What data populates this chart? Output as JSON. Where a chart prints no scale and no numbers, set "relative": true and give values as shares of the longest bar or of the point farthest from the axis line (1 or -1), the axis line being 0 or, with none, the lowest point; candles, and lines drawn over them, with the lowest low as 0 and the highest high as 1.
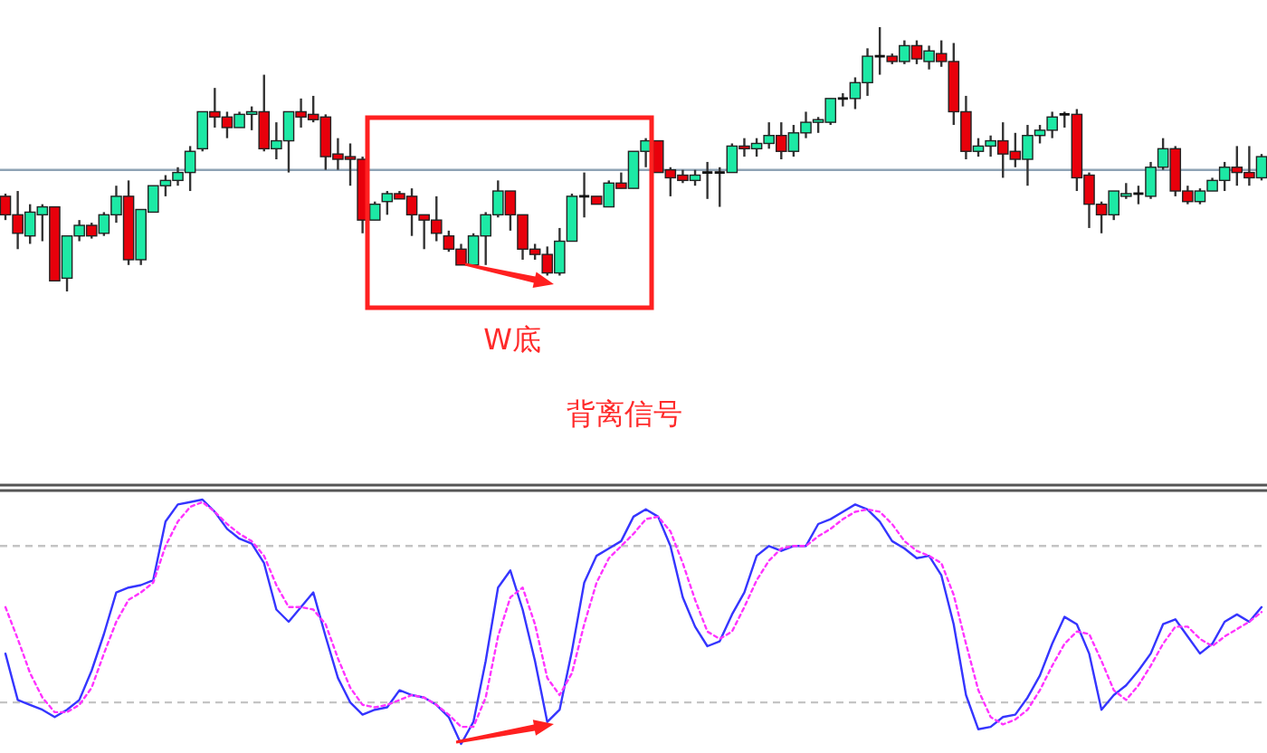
{
  "chart_data": [
    {
      "type": "candlestick",
      "relative": true,
      "categories": [
        null,
        null,
        null,
        null,
        null,
        null,
        null,
        null,
        null,
        null,
        null,
        null,
        null,
        null,
        null,
        null,
        null,
        null,
        null,
        null,
        null,
        null,
        null,
        null,
        null,
        null,
        null,
        null,
        null,
        null,
        null,
        null,
        null,
        null,
        null,
        null,
        null,
        null,
        null,
        null,
        null,
        null,
        null,
        null,
        null,
        null,
        null,
        null,
        null,
        null,
        null,
        null,
        null,
        null,
        null,
        null,
        null,
        null,
        null,
        null,
        null,
        null,
        null,
        null,
        null,
        null,
        null,
        null,
        null,
        null,
        null,
        null,
        null,
        null,
        null,
        null,
        null,
        null,
        null,
        null,
        null,
        null,
        null,
        null,
        null,
        null,
        null,
        null,
        null,
        null,
        null,
        null,
        null,
        null,
        null,
        null,
        null,
        null,
        null,
        null,
        null,
        null,
        null
      ],
      "ohlc": [
        [
          0.36,
          0.37,
          0.27,
          0.29
        ],
        [
          0.29,
          0.38,
          0.16,
          0.22
        ],
        [
          0.21,
          0.33,
          0.18,
          0.3
        ],
        [
          0.29,
          0.33,
          0.19,
          0.32
        ],
        [
          0.32,
          0.32,
          0.04,
          0.04
        ],
        [
          0.05,
          0.21,
          0,
          0.21
        ],
        [
          0.21,
          0.27,
          0.19,
          0.25
        ],
        [
          0.25,
          0.26,
          0.2,
          0.21
        ],
        [
          0.22,
          0.3,
          0.21,
          0.29
        ],
        [
          0.29,
          0.4,
          0.26,
          0.36
        ],
        [
          0.36,
          0.42,
          0.1,
          0.12
        ],
        [
          0.12,
          0.31,
          0.1,
          0.31
        ],
        [
          0.3,
          0.4,
          0.3,
          0.4
        ],
        [
          0.4,
          0.44,
          0.36,
          0.42
        ],
        [
          0.42,
          0.47,
          0.4,
          0.45
        ],
        [
          0.45,
          0.55,
          0.38,
          0.53
        ],
        [
          0.54,
          0.68,
          0.53,
          0.68
        ],
        [
          0.68,
          0.77,
          0.62,
          0.66
        ],
        [
          0.66,
          0.68,
          0.58,
          0.62
        ],
        [
          0.62,
          0.68,
          0.62,
          0.67
        ],
        [
          0.67,
          0.7,
          0.61,
          0.68
        ],
        [
          0.68,
          0.82,
          0.53,
          0.54
        ],
        [
          0.54,
          0.64,
          0.5,
          0.57
        ],
        [
          0.57,
          0.68,
          0.45,
          0.68
        ],
        [
          0.68,
          0.73,
          0.62,
          0.66
        ],
        [
          0.67,
          0.74,
          0.64,
          0.65
        ],
        [
          0.66,
          0.67,
          0.46,
          0.51
        ],
        [
          0.52,
          0.58,
          0.46,
          0.5
        ],
        [
          0.51,
          0.56,
          0.4,
          0.5
        ],
        [
          0.5,
          0.51,
          0.22,
          0.27
        ],
        [
          0.27,
          0.34,
          0.27,
          0.33
        ],
        [
          0.34,
          0.38,
          0.29,
          0.37
        ],
        [
          0.37,
          0.38,
          0.35,
          0.35
        ],
        [
          0.36,
          0.39,
          0.21,
          0.29
        ],
        [
          0.29,
          0.29,
          0.16,
          0.27
        ],
        [
          0.27,
          0.36,
          0.19,
          0.22
        ],
        [
          0.21,
          0.23,
          0.15,
          0.16
        ],
        [
          0.16,
          0.18,
          0.1,
          0.1
        ],
        [
          0.1,
          0.22,
          0.1,
          0.21
        ],
        [
          0.21,
          0.3,
          0.1,
          0.29
        ],
        [
          0.29,
          0.42,
          0.28,
          0.38
        ],
        [
          0.38,
          0.38,
          0.23,
          0.29
        ],
        [
          0.29,
          0.29,
          0.12,
          0.16
        ],
        [
          0.16,
          0.18,
          0.12,
          0.14
        ],
        [
          0.14,
          0.17,
          0.06,
          0.07
        ],
        [
          0.07,
          0.24,
          0.06,
          0.19
        ],
        [
          0.19,
          0.37,
          0.19,
          0.36
        ],
        [
          0.36,
          0.45,
          0.28,
          0.36
        ],
        [
          0.36,
          0.36,
          0.33,
          0.33
        ],
        [
          0.32,
          0.42,
          0.32,
          0.41
        ],
        [
          0.41,
          0.45,
          0.39,
          0.39
        ],
        [
          0.39,
          0.53,
          0.39,
          0.53
        ],
        [
          0.53,
          0.58,
          0.47,
          0.57
        ],
        [
          0.57,
          0.57,
          0.45,
          0.45
        ],
        [
          0.46,
          0.47,
          0.36,
          0.43
        ],
        [
          0.44,
          0.46,
          0.41,
          0.42
        ],
        [
          0.42,
          0.46,
          0.4,
          0.44
        ],
        [
          0.45,
          0.49,
          0.35,
          0.45
        ],
        [
          0.45,
          0.47,
          0.32,
          0.45
        ],
        [
          0.45,
          0.56,
          0.45,
          0.55
        ],
        [
          0.55,
          0.58,
          0.51,
          0.54
        ],
        [
          0.54,
          0.58,
          0.51,
          0.56
        ],
        [
          0.56,
          0.64,
          0.54,
          0.59
        ],
        [
          0.59,
          0.64,
          0.5,
          0.53
        ],
        [
          0.53,
          0.63,
          0.51,
          0.6
        ],
        [
          0.6,
          0.68,
          0.58,
          0.64
        ],
        [
          0.64,
          0.66,
          0.6,
          0.65
        ],
        [
          0.64,
          0.73,
          0.63,
          0.73
        ],
        [
          0.73,
          0.75,
          0.7,
          0.73
        ],
        [
          0.73,
          0.81,
          0.69,
          0.79
        ],
        [
          0.79,
          0.92,
          0.74,
          0.89
        ],
        [
          0.89,
          1.0,
          0.82,
          0.89
        ],
        [
          0.89,
          0.9,
          0.86,
          0.87
        ],
        [
          0.87,
          0.95,
          0.86,
          0.93
        ],
        [
          0.93,
          0.95,
          0.86,
          0.88
        ],
        [
          0.87,
          0.93,
          0.84,
          0.91
        ],
        [
          0.9,
          0.95,
          0.85,
          0.87
        ],
        [
          0.87,
          0.94,
          0.63,
          0.68
        ],
        [
          0.68,
          0.74,
          0.5,
          0.53
        ],
        [
          0.53,
          0.58,
          0.51,
          0.55
        ],
        [
          0.55,
          0.59,
          0.51,
          0.57
        ],
        [
          0.57,
          0.64,
          0.43,
          0.52
        ],
        [
          0.53,
          0.6,
          0.47,
          0.5
        ],
        [
          0.5,
          0.63,
          0.4,
          0.59
        ],
        [
          0.59,
          0.63,
          0.56,
          0.61
        ],
        [
          0.61,
          0.68,
          0.58,
          0.66
        ],
        [
          0.67,
          0.68,
          0.62,
          0.67
        ],
        [
          0.67,
          0.69,
          0.38,
          0.43
        ],
        [
          0.44,
          0.45,
          0.24,
          0.33
        ],
        [
          0.33,
          0.34,
          0.22,
          0.29
        ],
        [
          0.29,
          0.38,
          0.27,
          0.38
        ],
        [
          0.36,
          0.41,
          0.35,
          0.37
        ],
        [
          0.37,
          0.4,
          0.33,
          0.37
        ],
        [
          0.36,
          0.49,
          0.35,
          0.47
        ],
        [
          0.47,
          0.58,
          0.46,
          0.54
        ],
        [
          0.54,
          0.55,
          0.36,
          0.38
        ],
        [
          0.38,
          0.4,
          0.33,
          0.34
        ],
        [
          0.34,
          0.39,
          0.33,
          0.38
        ],
        [
          0.38,
          0.43,
          0.38,
          0.42
        ],
        [
          0.42,
          0.49,
          0.38,
          0.47
        ],
        [
          0.47,
          0.55,
          0.4,
          0.45
        ],
        [
          0.45,
          0.55,
          0.4,
          0.43
        ],
        [
          0.43,
          0.52,
          0.42,
          0.51
        ]
      ],
      "colors": [
        "#e8000b",
        "#e8000b",
        "#1de9a5",
        "#1de9a5",
        "#e8000b",
        "#1de9a5",
        "#1de9a5",
        "#e8000b",
        "#1de9a5",
        "#1de9a5",
        "#e8000b",
        "#1de9a5",
        "#1de9a5",
        "#1de9a5",
        "#1de9a5",
        "#1de9a5",
        "#1de9a5",
        "#e8000b",
        "#e8000b",
        "#1de9a5",
        "#1de9a5",
        "#e8000b",
        "#1de9a5",
        "#1de9a5",
        "#e8000b",
        "#e8000b",
        "#e8000b",
        "#e8000b",
        "#e8000b",
        "#e8000b",
        "#1de9a5",
        "#1de9a5",
        "#e8000b",
        "#e8000b",
        "#e8000b",
        "#e8000b",
        "#e8000b",
        "#e8000b",
        "#1de9a5",
        "#1de9a5",
        "#1de9a5",
        "#e8000b",
        "#e8000b",
        "#e8000b",
        "#e8000b",
        "#1de9a5",
        "#1de9a5",
        "#111111",
        "#e8000b",
        "#1de9a5",
        "#e8000b",
        "#1de9a5",
        "#1de9a5",
        "#e8000b",
        "#e8000b",
        "#e8000b",
        "#1de9a5",
        "#111111",
        "#111111",
        "#1de9a5",
        "#e8000b",
        "#1de9a5",
        "#1de9a5",
        "#e8000b",
        "#1de9a5",
        "#1de9a5",
        "#1de9a5",
        "#1de9a5",
        "#111111",
        "#1de9a5",
        "#1de9a5",
        "#111111",
        "#e8000b",
        "#1de9a5",
        "#e8000b",
        "#1de9a5",
        "#e8000b",
        "#e8000b",
        "#e8000b",
        "#1de9a5",
        "#1de9a5",
        "#e8000b",
        "#e8000b",
        "#1de9a5",
        "#1de9a5",
        "#1de9a5",
        "#111111",
        "#e8000b",
        "#e8000b",
        "#e8000b",
        "#1de9a5",
        "#1de9a5",
        "#111111",
        "#1de9a5",
        "#1de9a5",
        "#e8000b",
        "#e8000b",
        "#1de9a5",
        "#1de9a5",
        "#1de9a5",
        "#e8000b",
        "#e8000b",
        "#1de9a5"
      ],
      "ref_lines": [
        {
          "axis": "y",
          "value": 0.46,
          "color": "#8fa3b5"
        }
      ],
      "annotations": [
        "W底",
        "背离信号"
      ]
    },
    {
      "type": "line",
      "relative": true,
      "categories": [
        null,
        null,
        null,
        null,
        null,
        null,
        null,
        null,
        null,
        null,
        null,
        null,
        null,
        null,
        null,
        null,
        null,
        null,
        null,
        null,
        null,
        null,
        null,
        null,
        null,
        null,
        null,
        null,
        null,
        null,
        null,
        null,
        null,
        null,
        null,
        null,
        null,
        null,
        null,
        null,
        null,
        null,
        null,
        null,
        null,
        null,
        null,
        null,
        null,
        null,
        null,
        null,
        null,
        null,
        null,
        null,
        null,
        null,
        null,
        null,
        null,
        null,
        null,
        null,
        null,
        null,
        null,
        null,
        null,
        null,
        null,
        null,
        null,
        null,
        null,
        null,
        null,
        null,
        null,
        null,
        null,
        null,
        null,
        null,
        null,
        null,
        null,
        null,
        null,
        null,
        null,
        null,
        null,
        null,
        null,
        null,
        null,
        null,
        null,
        null,
        null,
        null,
        null
      ],
      "series": [
        {
          "color": "#3535ff",
          "line_style": "solid",
          "values": [
            0.37,
            0.18,
            0.16,
            0.14,
            0.11,
            0.14,
            0.18,
            0.3,
            0.45,
            0.62,
            0.64,
            0.65,
            0.67,
            0.91,
            0.98,
            0.99,
            1.0,
            0.95,
            0.88,
            0.84,
            0.82,
            0.74,
            0.55,
            0.5,
            0.56,
            0.62,
            0.44,
            0.27,
            0.17,
            0.12,
            0.14,
            0.15,
            0.22,
            0.2,
            0.19,
            0.16,
            0.11,
            0.0,
            0.09,
            0.34,
            0.64,
            0.71,
            0.55,
            0.34,
            0.09,
            0.14,
            0.38,
            0.66,
            0.77,
            0.8,
            0.83,
            0.93,
            0.96,
            0.93,
            0.81,
            0.6,
            0.48,
            0.4,
            0.42,
            0.53,
            0.62,
            0.77,
            0.81,
            0.79,
            0.81,
            0.81,
            0.9,
            0.92,
            0.95,
            0.98,
            0.96,
            0.91,
            0.83,
            0.8,
            0.76,
            0.77,
            0.69,
            0.49,
            0.2,
            0.06,
            0.07,
            0.11,
            0.12,
            0.19,
            0.28,
            0.41,
            0.52,
            0.49,
            0.37,
            0.14,
            0.2,
            0.24,
            0.3,
            0.37,
            0.49,
            0.51,
            0.44,
            0.37,
            0.41,
            0.5,
            0.53,
            0.5,
            0.56
          ]
        },
        {
          "color": "#ff33ff",
          "line_style": "dotted",
          "values": [
            0.56,
            0.43,
            0.29,
            0.19,
            0.13,
            0.13,
            0.16,
            0.23,
            0.37,
            0.5,
            0.59,
            0.62,
            0.66,
            0.81,
            0.91,
            0.97,
            0.99,
            0.95,
            0.9,
            0.86,
            0.83,
            0.77,
            0.65,
            0.56,
            0.56,
            0.55,
            0.49,
            0.35,
            0.23,
            0.16,
            0.15,
            0.16,
            0.18,
            0.2,
            0.19,
            0.16,
            0.12,
            0.07,
            0.07,
            0.19,
            0.44,
            0.6,
            0.64,
            0.49,
            0.27,
            0.2,
            0.29,
            0.49,
            0.66,
            0.76,
            0.81,
            0.86,
            0.92,
            0.93,
            0.87,
            0.74,
            0.59,
            0.46,
            0.43,
            0.46,
            0.56,
            0.67,
            0.75,
            0.8,
            0.81,
            0.81,
            0.85,
            0.88,
            0.92,
            0.95,
            0.96,
            0.95,
            0.9,
            0.83,
            0.79,
            0.77,
            0.74,
            0.61,
            0.41,
            0.22,
            0.11,
            0.08,
            0.1,
            0.14,
            0.22,
            0.32,
            0.41,
            0.46,
            0.45,
            0.34,
            0.22,
            0.18,
            0.24,
            0.32,
            0.41,
            0.48,
            0.48,
            0.43,
            0.4,
            0.44,
            0.47,
            0.5,
            0.54
          ]
        }
      ],
      "ref_lines": [
        {
          "axis": "y",
          "value": 0.81,
          "color": "#c4c4c4",
          "line_style": "dashed"
        },
        {
          "axis": "y",
          "value": 0.17,
          "color": "#c4c4c4",
          "line_style": "dashed"
        }
      ]
    }
  ]
}
